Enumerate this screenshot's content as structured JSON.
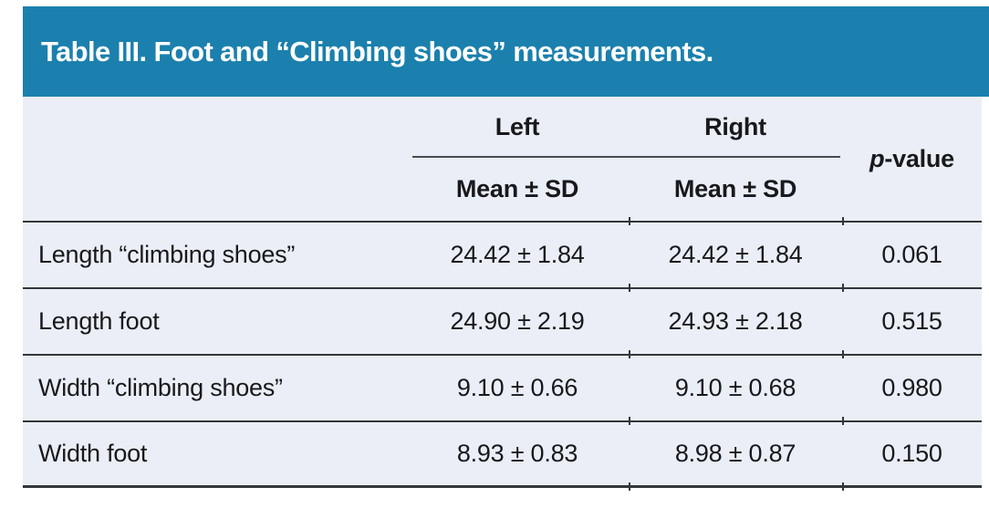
{
  "title": "Table III. Foot and “Climbing shoes” measurements.",
  "header": {
    "left_group": "Left",
    "right_group": "Right",
    "left_sub": "Mean ± SD",
    "right_sub": "Mean ± SD",
    "p_italic": "p",
    "p_rest": "-value"
  },
  "rows": [
    {
      "label": "Length “climbing shoes”",
      "left": "24.42 ± 1.84",
      "right": "24.42 ± 1.84",
      "p": "0.061"
    },
    {
      "label": "Length foot",
      "left": "24.90 ± 2.19",
      "right": "24.93 ± 2.18",
      "p": "0.515"
    },
    {
      "label": "Width “climbing shoes”",
      "left": "9.10 ± 0.66",
      "right": "9.10 ± 0.68",
      "p": "0.980"
    },
    {
      "label": "Width foot",
      "left": "8.93 ± 0.83",
      "right": "8.98 ± 0.87",
      "p": "0.150"
    }
  ],
  "colors": {
    "title-bg": "#1b80ad",
    "title-text": "#ffffff",
    "body-bg": "#ebeef6",
    "rule": "#33373b",
    "text": "#17191c"
  }
}
